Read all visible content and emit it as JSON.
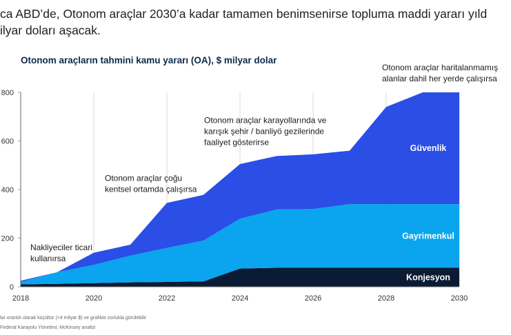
{
  "headline": {
    "line1": "ca ABD’de, Otonom araçlar 2030’a kadar tamamen benimsenirse topluma maddi yararı yıld",
    "line2": "ilyar doları aşacak."
  },
  "footnotes": {
    "note1": "lar orantılı olarak küçültür (<4 milyar $) ve grafikte zorlukla görülebilir",
    "note2": "Federal Karayolu Yönetimi; McKinsey analizi"
  },
  "chart_data": {
    "type": "area",
    "stacked": true,
    "title": "Otonom araçların tahmini kamu yararı (OA), $ milyar dolar",
    "x": [
      2018,
      2019,
      2020,
      2021,
      2022,
      2023,
      2024,
      2025,
      2026,
      2027,
      2028,
      2029,
      2030
    ],
    "x_ticks": [
      "2018",
      "2020",
      "2022",
      "2024",
      "2026",
      "2028",
      "2030"
    ],
    "y_ticks": [
      "0",
      "200",
      "400",
      "600",
      "800"
    ],
    "ylim": [
      0,
      800
    ],
    "series": [
      {
        "name": "Konjesyon",
        "color": "#0b1b33",
        "values": [
          10,
          12,
          15,
          18,
          20,
          22,
          75,
          78,
          78,
          78,
          78,
          78,
          78
        ]
      },
      {
        "name": "Gayrimenkul",
        "color": "#0aa5ee",
        "values": [
          10,
          48,
          75,
          110,
          140,
          168,
          205,
          240,
          242,
          262,
          262,
          262,
          262
        ]
      },
      {
        "name": "Güvenlik",
        "color": "#2a4ee6",
        "values": [
          5,
          0,
          50,
          45,
          185,
          188,
          225,
          220,
          225,
          220,
          400,
          460,
          460
        ]
      }
    ],
    "annotations": [
      {
        "x": 2019,
        "lines": [
          "Nakliyeciler ticari",
          "kullanırsa"
        ]
      },
      {
        "x": 2022,
        "lines": [
          "Otonom araçlar çoğu",
          "kentsel ortamda çalışırsa"
        ]
      },
      {
        "x": 2025,
        "lines": [
          "Otonom araçlar karayollarında ve",
          "karışık şehir / banliyö gezilerinde",
          "faaliyet gösterirse"
        ]
      },
      {
        "x": 2029,
        "lines": [
          "Otonom araçlar haritalanmamış",
          "alanlar dahil her yerde çalışırsa"
        ]
      }
    ]
  }
}
